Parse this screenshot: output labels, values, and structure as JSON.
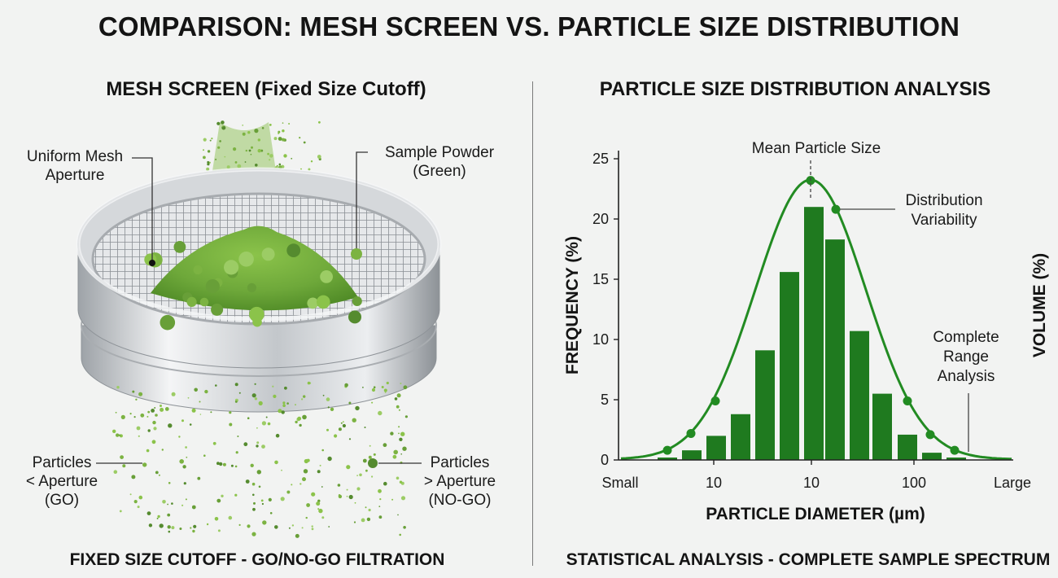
{
  "title": "COMPARISON: MESH SCREEN VS. PARTICLE SIZE DISTRIBUTION",
  "left_panel": {
    "title": "MESH SCREEN (Fixed Size Cutoff)",
    "callouts": {
      "mesh": "Uniform Mesh Aperture",
      "mesh_l1": "Uniform Mesh",
      "mesh_l2": "Aperture",
      "powder_l1": "Sample Powder",
      "powder_l2": "(Green)",
      "small_l1": "Particles",
      "small_l2": "< Aperture",
      "small_l3": "(GO)",
      "large_l1": "Particles",
      "large_l2": "> Aperture",
      "large_l3": "(NO-GO)"
    },
    "footer": "FIXED SIZE CUTOFF - GO/NO-GO FILTRATION"
  },
  "right_panel": {
    "title": "PARTICLE SIZE DISTRIBUTION ANALYSIS",
    "footer": "STATISTICAL ANALYSIS - COMPLETE SAMPLE SPECTRUM",
    "annotations": {
      "mean": "Mean Particle Size",
      "var_l1": "Distribution",
      "var_l2": "Variability",
      "range_l1": "Complete",
      "range_l2": "Range",
      "range_l3": "Analysis"
    }
  },
  "colors": {
    "bar": "#1f7a1f",
    "curve": "#228b22",
    "powder": "#7cb342",
    "metal": "#c8cbce"
  },
  "chart_data": {
    "type": "bar",
    "xlabel": "PARTICLE DIAMETER (µm)",
    "ylabel": "FREQUENCY (%)",
    "ylabel_right": "VOLUME (%)",
    "x_ticks": [
      "Small",
      "10",
      "10",
      "100",
      "Large"
    ],
    "y_ticks": [
      "0",
      "5",
      "10",
      "15",
      "20",
      "25"
    ],
    "ylim": [
      0,
      25
    ],
    "bars": [
      0.2,
      0.8,
      2.0,
      3.8,
      9.1,
      15.6,
      21.0,
      18.3,
      10.7,
      5.5,
      2.1,
      0.6,
      0.2
    ],
    "curve_points": [
      0.8,
      2.2,
      4.9,
      23.2,
      20.8,
      4.9,
      2.1,
      0.8
    ]
  }
}
